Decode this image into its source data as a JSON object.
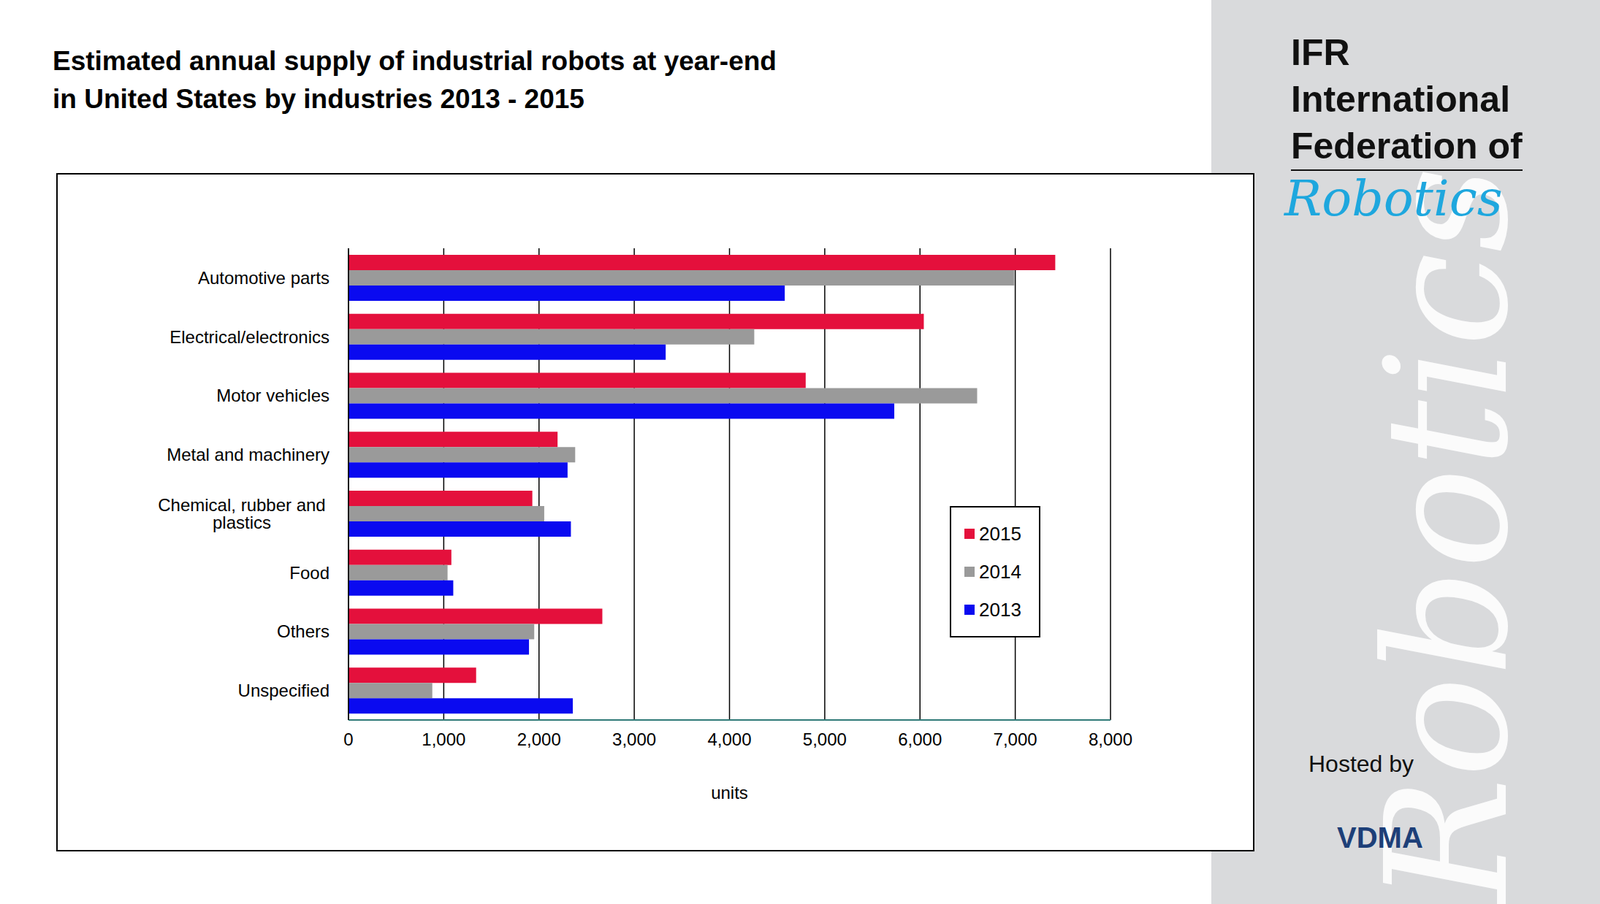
{
  "chart_data": {
    "type": "bar",
    "title": "Estimated annual supply of industrial robots at year-end\n in United States by industries 2013 - 2015",
    "categories": [
      "Automotive parts",
      "Electrical/electronics",
      "Motor vehicles",
      "Metal and machinery",
      "Chemical, rubber and plastics",
      "Food",
      "Others",
      "Unspecified"
    ],
    "series": [
      {
        "name": "2015",
        "color": "#e4103c",
        "values": [
          7420,
          6040,
          4800,
          2195,
          1930,
          1080,
          2665,
          1340
        ]
      },
      {
        "name": "2014",
        "color": "#9a9a9a",
        "values": [
          6990,
          4260,
          6600,
          2380,
          2055,
          1040,
          1950,
          880
        ]
      },
      {
        "name": "2013",
        "color": "#0a0af0",
        "values": [
          4580,
          3330,
          5730,
          2300,
          2335,
          1100,
          1895,
          2355
        ]
      }
    ],
    "xlabel": "units",
    "xlim": [
      0,
      8000
    ],
    "xticks": [
      0,
      {
        "value": 1000,
        "label": "1,000"
      },
      {
        "value": 2000,
        "label": "2,000"
      },
      {
        "value": 3000,
        "label": "3,000"
      },
      {
        "value": 4000,
        "label": "4,000"
      },
      {
        "value": 5000,
        "label": "5,000"
      },
      {
        "value": 6000,
        "label": "6,000"
      },
      {
        "value": 7000,
        "label": "7,000"
      },
      {
        "value": 8000,
        "label": "8,000"
      }
    ],
    "orientation": "horizontal",
    "grid": true,
    "legend": "right",
    "annotations": [
      "IFR",
      "International",
      "Federation of",
      "Robotics",
      "Hosted by",
      "VDMA"
    ]
  }
}
